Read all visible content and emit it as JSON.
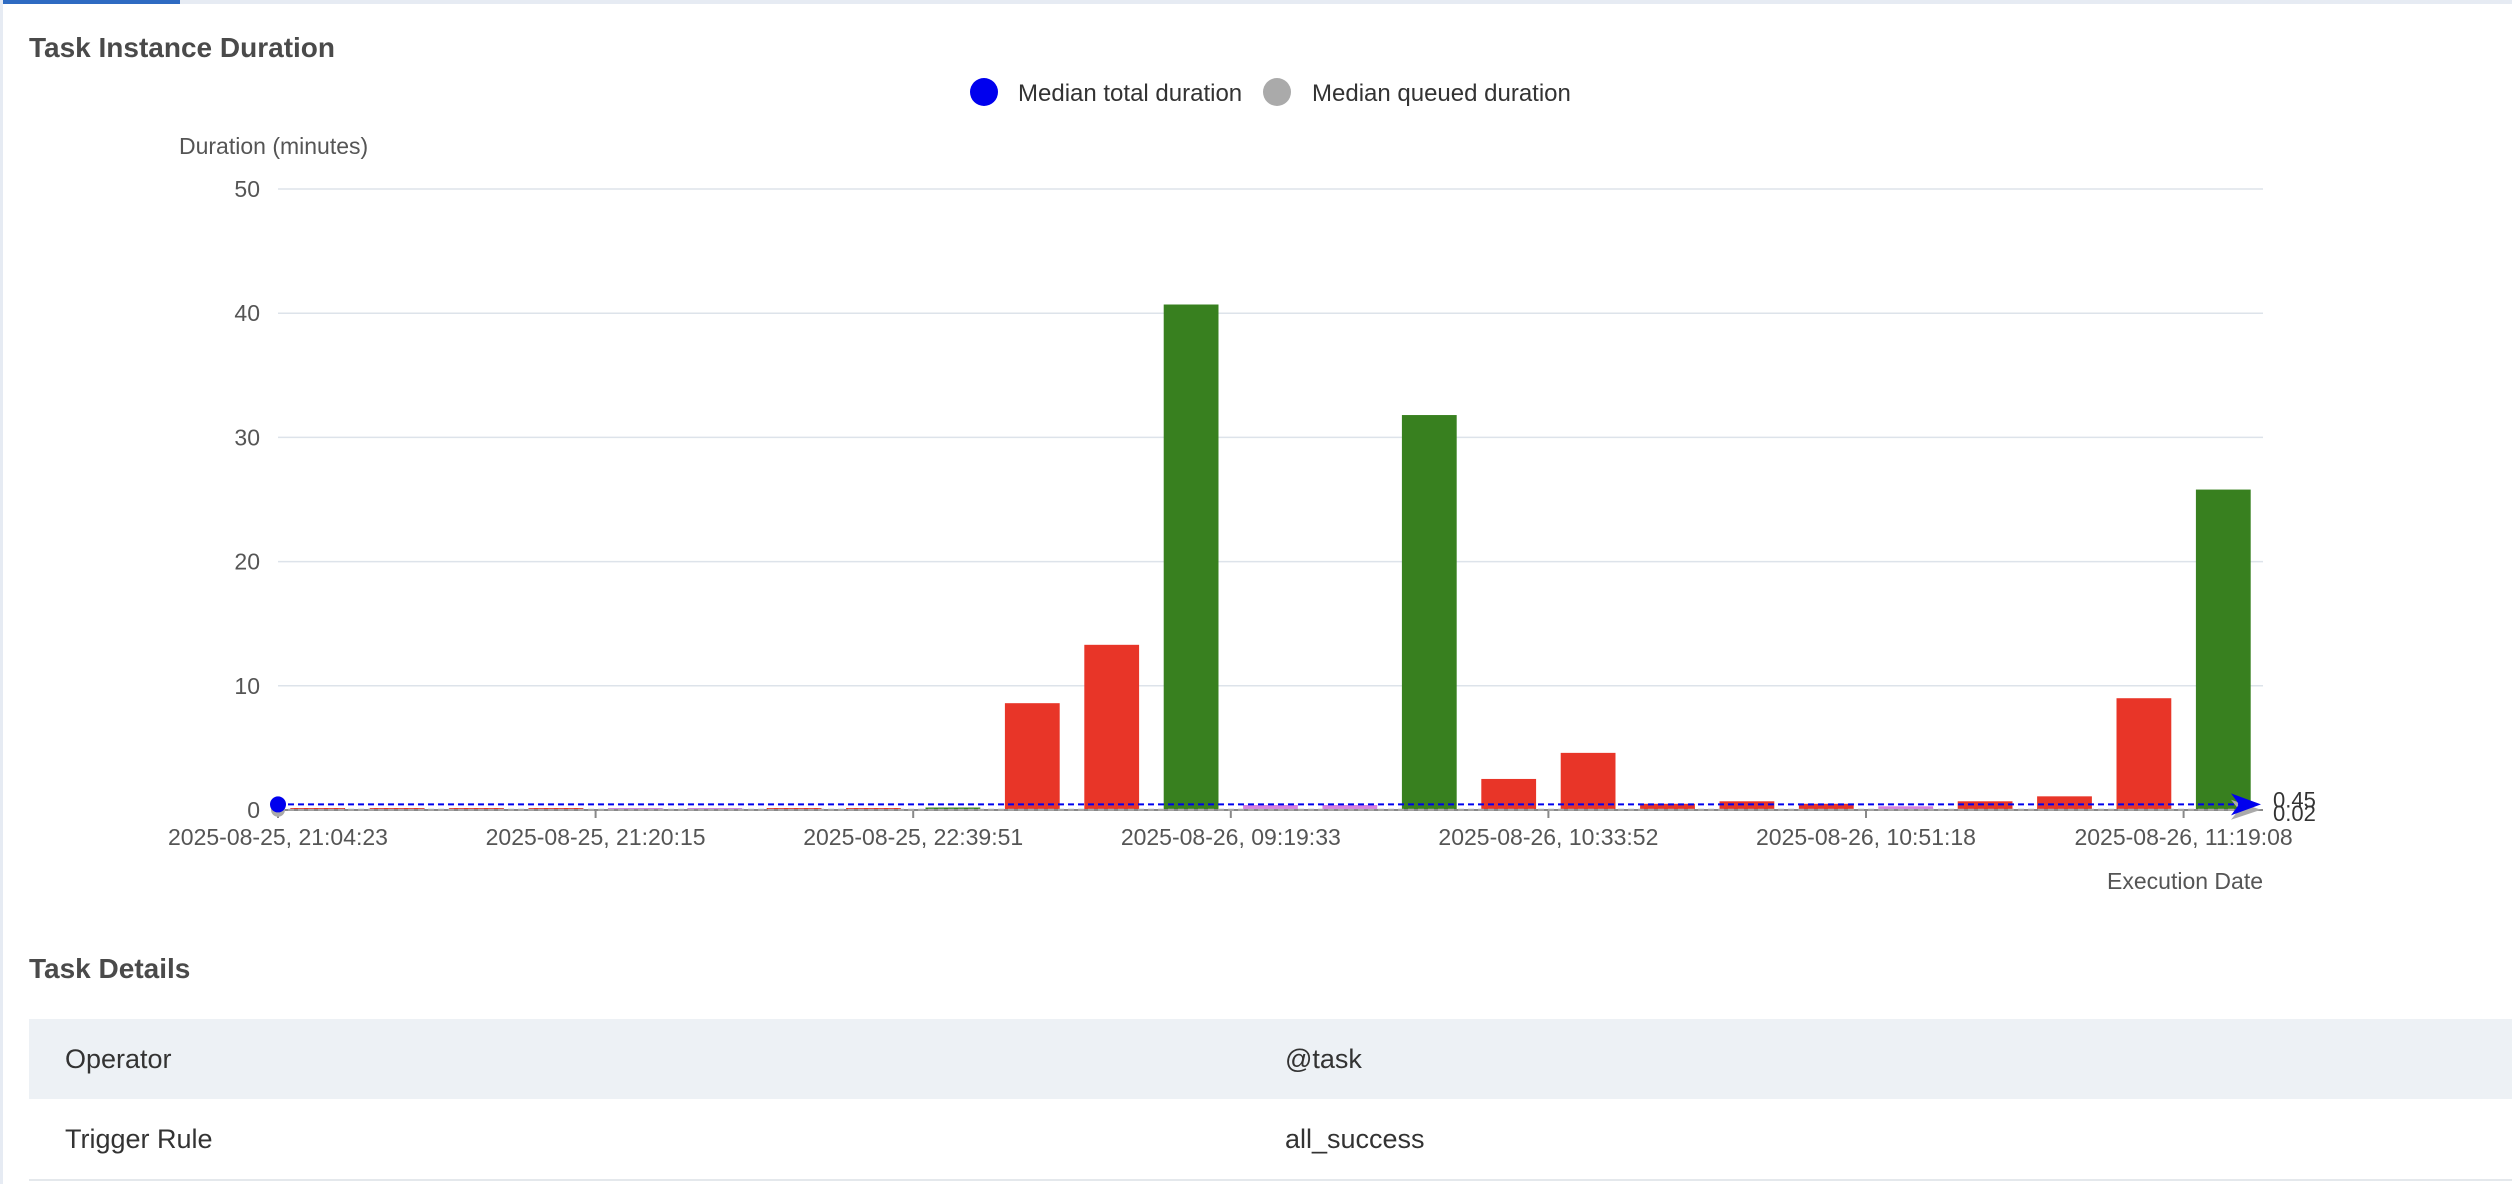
{
  "colors": {
    "failed": "#e83528",
    "success": "#38801f",
    "other": "#d884e0",
    "median_total": "#0000ee",
    "median_queued": "#aaaaaa"
  },
  "chart_section": {
    "title": "Task Instance Duration"
  },
  "chart_data": {
    "type": "bar",
    "title": "",
    "ylabel": "Duration (minutes)",
    "xlabel": "Execution Date",
    "ylim": [
      0,
      50
    ],
    "yticks": [
      0,
      10,
      20,
      30,
      40,
      50
    ],
    "xtick_labels": [
      "2025-08-25, 21:04:23",
      "2025-08-25, 21:20:15",
      "2025-08-25, 22:39:51",
      "2025-08-26, 09:19:33",
      "2025-08-26, 10:33:52",
      "2025-08-26, 10:51:18",
      "2025-08-26, 11:19:08"
    ],
    "grid": true,
    "legend": {
      "position": "top-center",
      "items": [
        {
          "name": "Median total duration",
          "color": "#0000ee"
        },
        {
          "name": "Median queued duration",
          "color": "#aaaaaa"
        }
      ]
    },
    "bars": [
      {
        "value": 0.15,
        "state": "failed"
      },
      {
        "value": 0.15,
        "state": "failed"
      },
      {
        "value": 0.15,
        "state": "failed"
      },
      {
        "value": 0.15,
        "state": "failed"
      },
      {
        "value": 0.15,
        "state": "other"
      },
      {
        "value": 0.15,
        "state": "other"
      },
      {
        "value": 0.15,
        "state": "failed"
      },
      {
        "value": 0.15,
        "state": "failed"
      },
      {
        "value": 0.2,
        "state": "success"
      },
      {
        "value": 8.6,
        "state": "failed"
      },
      {
        "value": 13.3,
        "state": "failed"
      },
      {
        "value": 40.7,
        "state": "success"
      },
      {
        "value": 0.4,
        "state": "other"
      },
      {
        "value": 0.4,
        "state": "other"
      },
      {
        "value": 31.8,
        "state": "success"
      },
      {
        "value": 2.5,
        "state": "failed"
      },
      {
        "value": 4.6,
        "state": "failed"
      },
      {
        "value": 0.5,
        "state": "failed"
      },
      {
        "value": 0.7,
        "state": "failed"
      },
      {
        "value": 0.5,
        "state": "failed"
      },
      {
        "value": 0.3,
        "state": "other"
      },
      {
        "value": 0.7,
        "state": "failed"
      },
      {
        "value": 1.1,
        "state": "failed"
      },
      {
        "value": 9.0,
        "state": "failed"
      },
      {
        "value": 25.8,
        "state": "success"
      }
    ],
    "median_lines": [
      {
        "name": "Median total duration",
        "value": 0.45,
        "label": "0.45"
      },
      {
        "name": "Median queued duration",
        "value": 0.02,
        "label": "0.02"
      }
    ]
  },
  "details_section": {
    "title": "Task Details",
    "rows": [
      {
        "key": "Operator",
        "value": "@task"
      },
      {
        "key": "Trigger Rule",
        "value": "all_success"
      }
    ]
  }
}
